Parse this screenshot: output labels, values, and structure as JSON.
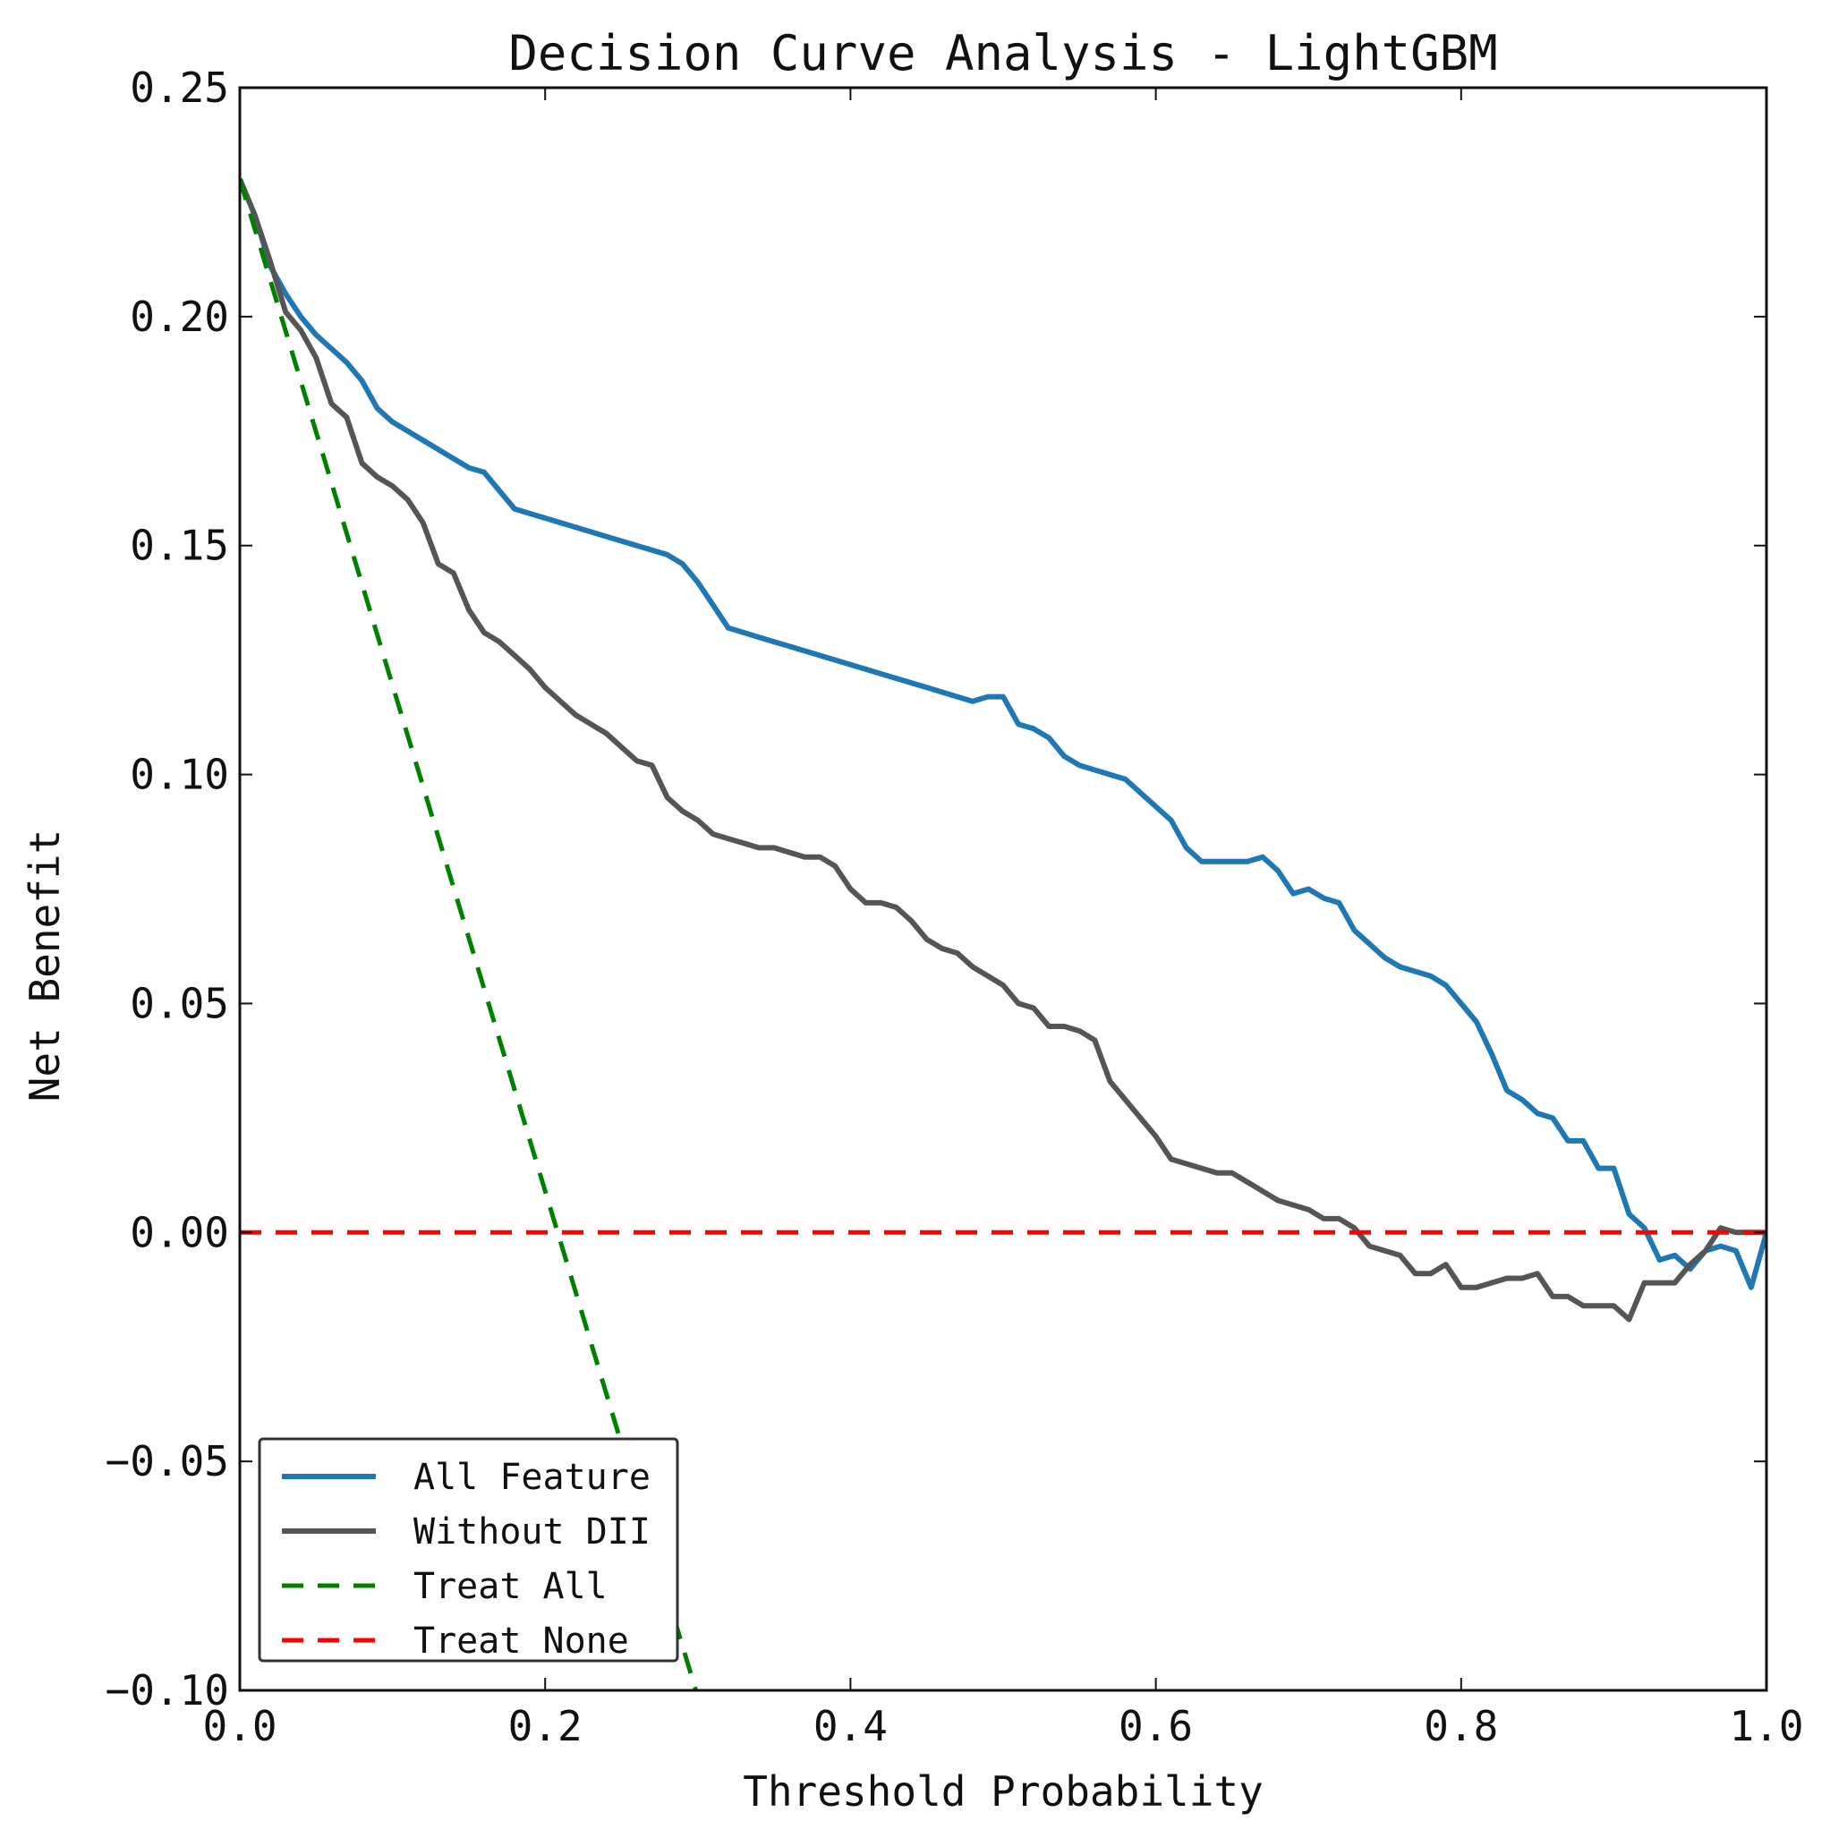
{
  "chart_data": {
    "type": "line",
    "title": "Decision Curve Analysis - LightGBM",
    "xlabel": "Threshold Probability",
    "ylabel": "Net Benefit",
    "xlim": [
      0.0,
      1.0
    ],
    "ylim": [
      -0.1,
      0.25
    ],
    "x_ticks": [
      "0.0",
      "0.2",
      "0.4",
      "0.6",
      "0.8",
      "1.0"
    ],
    "y_ticks": [
      "−0.10",
      "−0.05",
      "0.00",
      "0.05",
      "0.10",
      "0.15",
      "0.20",
      "0.25"
    ],
    "grid": false,
    "legend_position": "lower-left",
    "series": [
      {
        "name": "All Feature",
        "color": "#1f77b4",
        "style": "solid",
        "x": [
          0.0,
          0.01,
          0.02,
          0.03,
          0.04,
          0.05,
          0.06,
          0.07,
          0.08,
          0.09,
          0.1,
          0.11,
          0.12,
          0.13,
          0.14,
          0.15,
          0.16,
          0.17,
          0.18,
          0.19,
          0.2,
          0.21,
          0.22,
          0.23,
          0.24,
          0.25,
          0.26,
          0.27,
          0.28,
          0.29,
          0.3,
          0.31,
          0.32,
          0.33,
          0.34,
          0.35,
          0.36,
          0.37,
          0.38,
          0.39,
          0.4,
          0.41,
          0.42,
          0.43,
          0.44,
          0.45,
          0.46,
          0.47,
          0.48,
          0.49,
          0.5,
          0.51,
          0.52,
          0.53,
          0.54,
          0.55,
          0.56,
          0.57,
          0.58,
          0.59,
          0.6,
          0.61,
          0.62,
          0.63,
          0.64,
          0.65,
          0.66,
          0.67,
          0.68,
          0.69,
          0.7,
          0.71,
          0.72,
          0.73,
          0.74,
          0.75,
          0.76,
          0.77,
          0.78,
          0.79,
          0.8,
          0.81,
          0.82,
          0.83,
          0.84,
          0.85,
          0.86,
          0.87,
          0.88,
          0.89,
          0.9,
          0.91,
          0.92,
          0.93,
          0.94,
          0.95,
          0.96,
          0.97,
          0.98,
          0.99,
          1.0
        ],
        "values": [
          0.23,
          0.222,
          0.211,
          0.205,
          0.2,
          0.196,
          0.193,
          0.19,
          0.186,
          0.18,
          0.177,
          0.175,
          0.173,
          0.171,
          0.169,
          0.167,
          0.166,
          0.162,
          0.158,
          0.157,
          0.156,
          0.155,
          0.154,
          0.153,
          0.152,
          0.151,
          0.15,
          0.149,
          0.148,
          0.146,
          0.142,
          0.137,
          0.132,
          0.131,
          0.13,
          0.129,
          0.128,
          0.127,
          0.126,
          0.125,
          0.124,
          0.123,
          0.122,
          0.121,
          0.12,
          0.119,
          0.118,
          0.117,
          0.116,
          0.117,
          0.117,
          0.111,
          0.11,
          0.108,
          0.104,
          0.102,
          0.101,
          0.1,
          0.099,
          0.096,
          0.093,
          0.09,
          0.084,
          0.081,
          0.081,
          0.081,
          0.081,
          0.082,
          0.079,
          0.074,
          0.075,
          0.073,
          0.072,
          0.066,
          0.063,
          0.06,
          0.058,
          0.057,
          0.056,
          0.054,
          0.05,
          0.046,
          0.039,
          0.031,
          0.029,
          0.026,
          0.025,
          0.02,
          0.02,
          0.014,
          0.014,
          0.004,
          0.001,
          -0.006,
          -0.005,
          -0.008,
          -0.004,
          -0.003,
          -0.004,
          -0.012,
          0.0
        ]
      },
      {
        "name": "Without DII",
        "color": "#555555",
        "style": "solid",
        "x": [
          0.0,
          0.01,
          0.02,
          0.03,
          0.04,
          0.05,
          0.06,
          0.07,
          0.08,
          0.09,
          0.1,
          0.11,
          0.12,
          0.13,
          0.14,
          0.15,
          0.16,
          0.17,
          0.18,
          0.19,
          0.2,
          0.21,
          0.22,
          0.23,
          0.24,
          0.25,
          0.26,
          0.27,
          0.28,
          0.29,
          0.3,
          0.31,
          0.32,
          0.33,
          0.34,
          0.35,
          0.36,
          0.37,
          0.38,
          0.39,
          0.4,
          0.41,
          0.42,
          0.43,
          0.44,
          0.45,
          0.46,
          0.47,
          0.48,
          0.49,
          0.5,
          0.51,
          0.52,
          0.53,
          0.54,
          0.55,
          0.56,
          0.57,
          0.58,
          0.59,
          0.6,
          0.61,
          0.62,
          0.63,
          0.64,
          0.65,
          0.66,
          0.67,
          0.68,
          0.69,
          0.7,
          0.71,
          0.72,
          0.73,
          0.74,
          0.75,
          0.76,
          0.77,
          0.78,
          0.79,
          0.8,
          0.81,
          0.82,
          0.83,
          0.84,
          0.85,
          0.86,
          0.87,
          0.88,
          0.89,
          0.9,
          0.91,
          0.92,
          0.93,
          0.94,
          0.95,
          0.96,
          0.97,
          0.98,
          0.99,
          1.0
        ],
        "values": [
          0.23,
          0.222,
          0.212,
          0.201,
          0.197,
          0.191,
          0.181,
          0.178,
          0.168,
          0.165,
          0.163,
          0.16,
          0.155,
          0.146,
          0.144,
          0.136,
          0.131,
          0.129,
          0.126,
          0.123,
          0.119,
          0.116,
          0.113,
          0.111,
          0.109,
          0.106,
          0.103,
          0.102,
          0.095,
          0.092,
          0.09,
          0.087,
          0.086,
          0.085,
          0.084,
          0.084,
          0.083,
          0.082,
          0.082,
          0.08,
          0.075,
          0.072,
          0.072,
          0.071,
          0.068,
          0.064,
          0.062,
          0.061,
          0.058,
          0.056,
          0.054,
          0.05,
          0.049,
          0.045,
          0.045,
          0.044,
          0.042,
          0.033,
          0.029,
          0.025,
          0.021,
          0.016,
          0.015,
          0.014,
          0.013,
          0.013,
          0.011,
          0.009,
          0.007,
          0.006,
          0.005,
          0.003,
          0.003,
          0.001,
          -0.003,
          -0.004,
          -0.005,
          -0.009,
          -0.009,
          -0.007,
          -0.012,
          -0.012,
          -0.011,
          -0.01,
          -0.01,
          -0.009,
          -0.014,
          -0.014,
          -0.016,
          -0.016,
          -0.016,
          -0.019,
          -0.011,
          -0.011,
          -0.011,
          -0.007,
          -0.004,
          0.001,
          0.0,
          0.0,
          0.0
        ]
      },
      {
        "name": "Treat All",
        "color": "#008000",
        "style": "dashed",
        "x": [
          0.0,
          0.3
        ],
        "values": [
          0.23,
          -0.1014
        ]
      },
      {
        "name": "Treat None",
        "color": "#ff0000",
        "style": "dashed",
        "x": [
          0.0,
          1.0
        ],
        "values": [
          0.0,
          0.0
        ]
      }
    ]
  }
}
